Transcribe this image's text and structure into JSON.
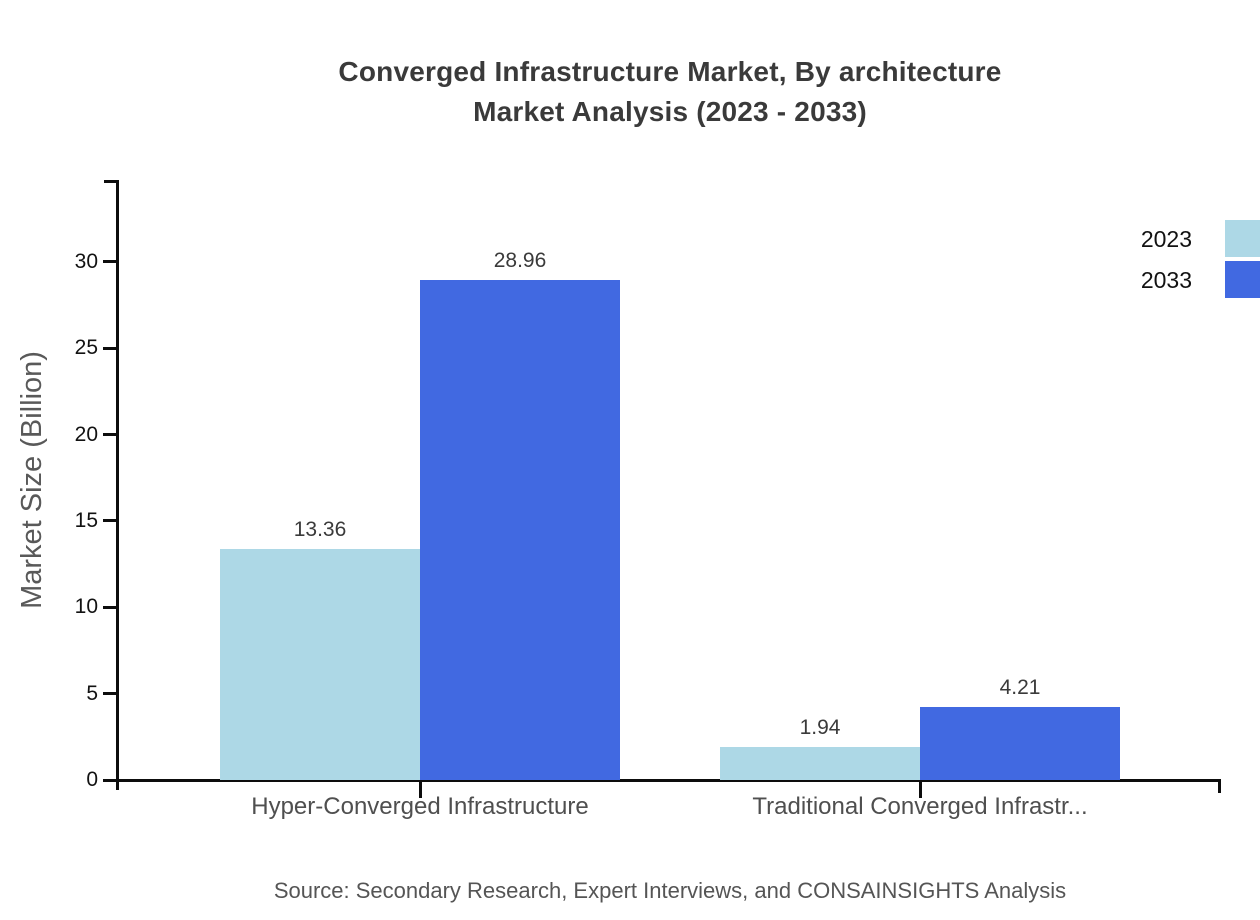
{
  "title": {
    "line1": "Converged Infrastructure Market, By architecture",
    "line2": "Market Analysis (2023 - 2033)"
  },
  "source": "Source: Secondary Research, Expert Interviews, and CONSAINSIGHTS Analysis",
  "chart_data": {
    "type": "bar",
    "title": "Converged Infrastructure Market, By architecture Market Analysis (2023 - 2033)",
    "categories": [
      "Hyper-Converged Infrastructure",
      "Traditional Converged Infrastr..."
    ],
    "series": [
      {
        "name": "2023",
        "color": "#ADD8E6",
        "values": [
          13.36,
          1.94
        ]
      },
      {
        "name": "2033",
        "color": "#4169E1",
        "values": [
          28.96,
          4.21
        ]
      }
    ],
    "xlabel": "",
    "ylabel": "Market Size (Billion)",
    "ylim": [
      0,
      35
    ],
    "yticks": [
      0,
      5,
      10,
      15,
      20,
      25,
      30
    ],
    "grid": false,
    "value_labels": true,
    "legend_position": "top-right"
  },
  "colors": {
    "series_2023": "#ADD8E6",
    "series_2033": "#4169E1",
    "axis": "#0d0d0d",
    "title_text": "#3a3a3a",
    "muted_text": "#555555"
  }
}
